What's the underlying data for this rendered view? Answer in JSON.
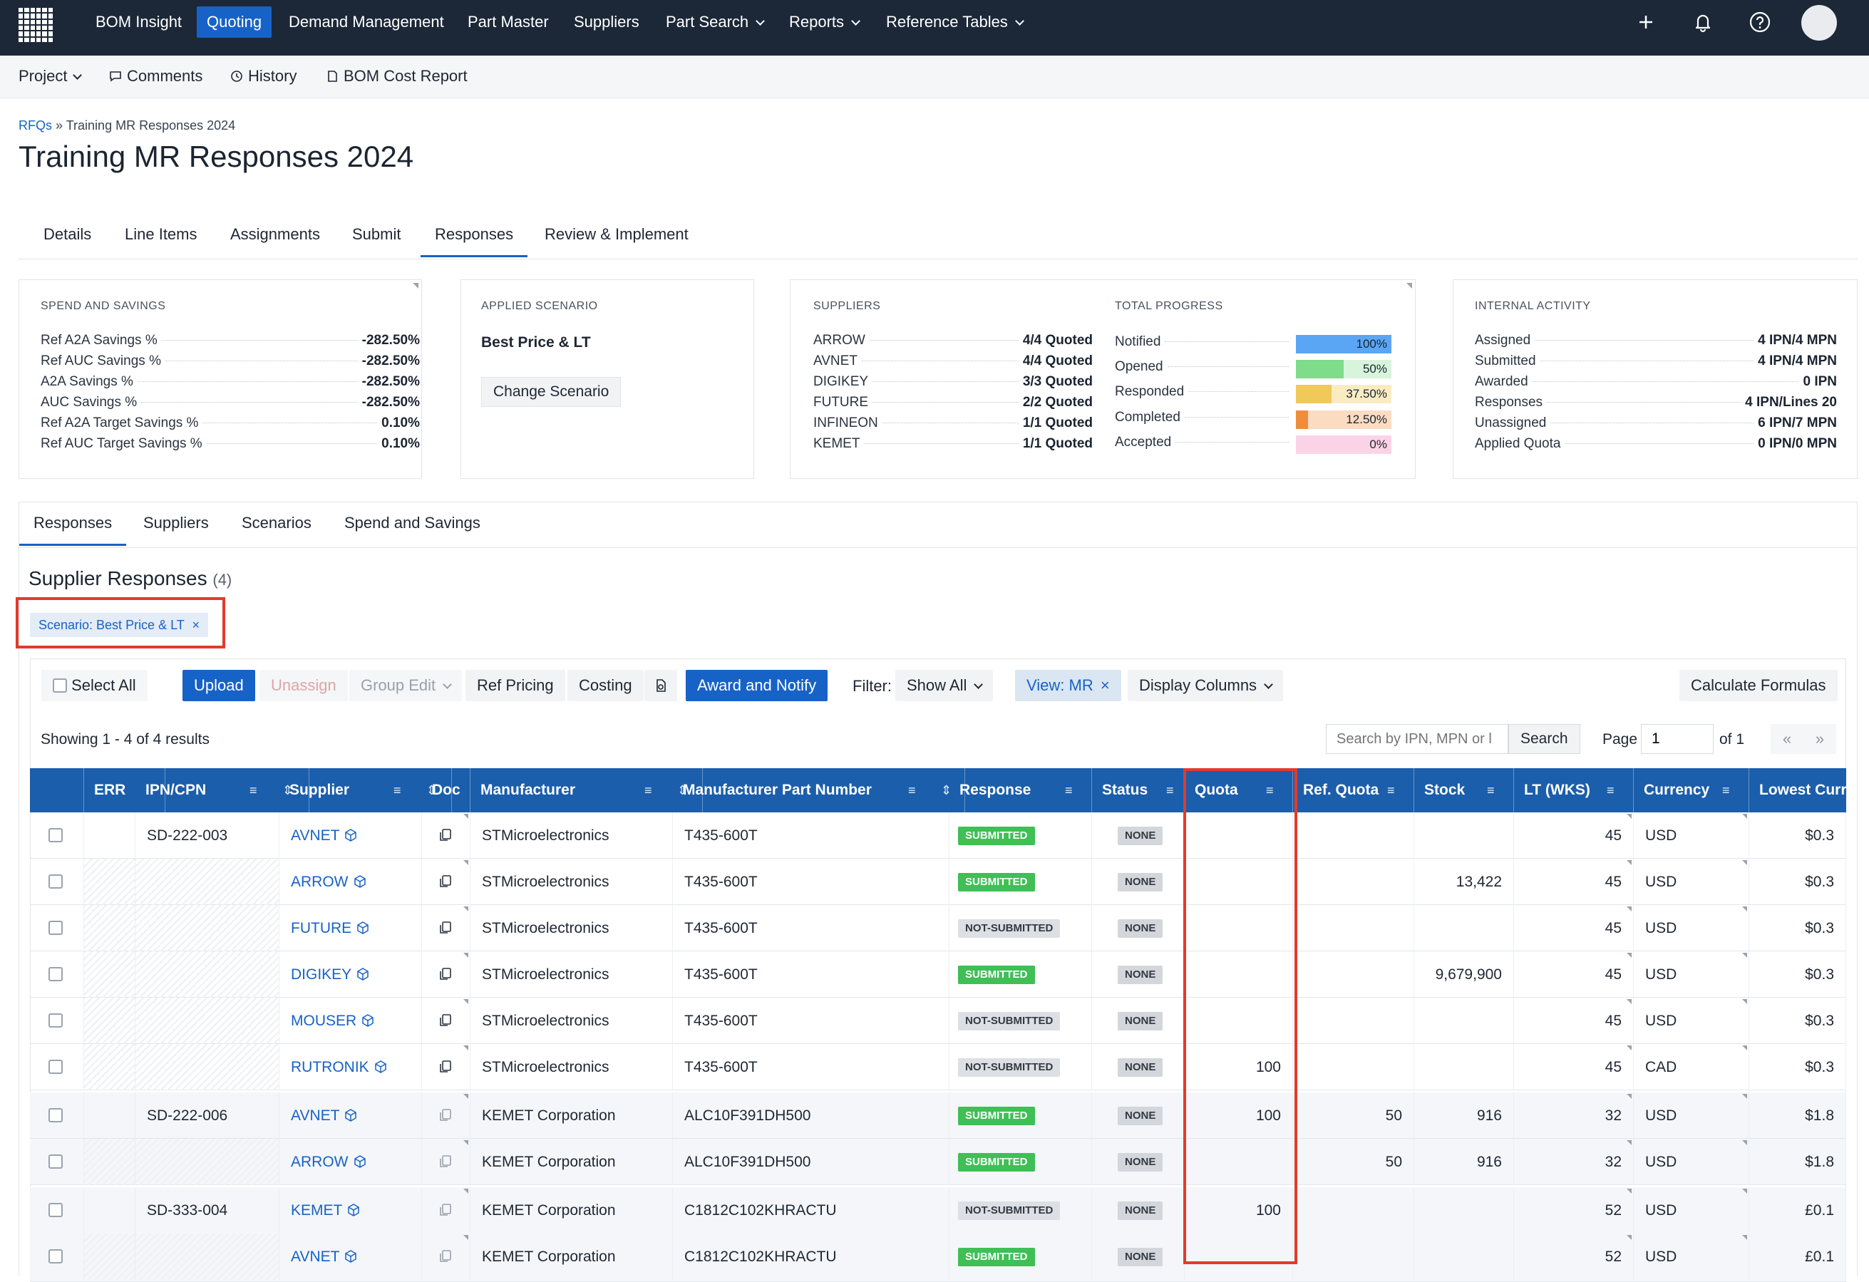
{
  "topnav": {
    "items": [
      "BOM Insight",
      "Quoting",
      "Demand Management",
      "Part Master",
      "Suppliers",
      "Part Search",
      "Reports",
      "Reference Tables"
    ],
    "active": "Quoting"
  },
  "subnav": {
    "project": "Project",
    "comments": "Comments",
    "history": "History",
    "bom_cost_report": "BOM Cost Report"
  },
  "breadcrumb": {
    "root": "RFQs",
    "sep": "»",
    "current": "Training MR Responses 2024"
  },
  "page_title": "Training MR Responses 2024",
  "main_tabs": [
    "Details",
    "Line Items",
    "Assignments",
    "Submit",
    "Responses",
    "Review & Implement"
  ],
  "spend": {
    "heading": "SPEND AND SAVINGS",
    "rows": [
      {
        "k": "Ref A2A Savings %",
        "v": "-282.50%"
      },
      {
        "k": "Ref AUC Savings %",
        "v": "-282.50%"
      },
      {
        "k": "A2A Savings %",
        "v": "-282.50%"
      },
      {
        "k": "AUC Savings %",
        "v": "-282.50%"
      },
      {
        "k": "Ref A2A Target Savings %",
        "v": "0.10%"
      },
      {
        "k": "Ref AUC Target Savings %",
        "v": "0.10%"
      }
    ]
  },
  "scenario": {
    "heading": "APPLIED SCENARIO",
    "name": "Best Price & LT",
    "button": "Change Scenario"
  },
  "suppliers_card": {
    "heading": "SUPPLIERS",
    "rows": [
      {
        "k": "ARROW",
        "v": "4/4 Quoted"
      },
      {
        "k": "AVNET",
        "v": "4/4 Quoted"
      },
      {
        "k": "DIGIKEY",
        "v": "3/3 Quoted"
      },
      {
        "k": "FUTURE",
        "v": "2/2 Quoted"
      },
      {
        "k": "INFINEON",
        "v": "1/1 Quoted"
      },
      {
        "k": "KEMET",
        "v": "1/1 Quoted"
      }
    ]
  },
  "progress": {
    "heading": "TOTAL PROGRESS",
    "rows": [
      {
        "k": "Notified",
        "v": "100%",
        "fraction": 1.0,
        "color": "#5aa6f5",
        "bg": "#cfe4fb"
      },
      {
        "k": "Opened",
        "v": "50%",
        "fraction": 0.5,
        "color": "#7fdc8a",
        "bg": "#d8f4dc"
      },
      {
        "k": "Responded",
        "v": "37.50%",
        "fraction": 0.375,
        "color": "#f0c95a",
        "bg": "#faecc2"
      },
      {
        "k": "Completed",
        "v": "12.50%",
        "fraction": 0.125,
        "color": "#f08c3a",
        "bg": "#fbdcc3"
      },
      {
        "k": "Accepted",
        "v": "0%",
        "fraction": 0.0,
        "color": "#f59fc6",
        "bg": "#fbd3e6"
      }
    ]
  },
  "internal": {
    "heading": "INTERNAL ACTIVITY",
    "rows": [
      {
        "k": "Assigned",
        "v": "4 IPN/4 MPN"
      },
      {
        "k": "Submitted",
        "v": "4 IPN/4 MPN"
      },
      {
        "k": "Awarded",
        "v": "0 IPN"
      },
      {
        "k": "Responses",
        "v": "4 IPN/Lines 20"
      },
      {
        "k": "Unassigned",
        "v": "6 IPN/7 MPN"
      },
      {
        "k": "Applied Quota",
        "v": "0 IPN/0 MPN"
      }
    ]
  },
  "sub_tabs": [
    "Responses",
    "Suppliers",
    "Scenarios",
    "Spend and Savings"
  ],
  "section": {
    "title": "Supplier Responses",
    "count": "(4)",
    "chip": "Scenario: Best Price & LT",
    "chip_close": "×"
  },
  "toolbar": {
    "select_all": "Select All",
    "upload": "Upload",
    "unassign": "Unassign",
    "group_edit": "Group Edit",
    "ref_pricing": "Ref Pricing",
    "costing": "Costing",
    "award": "Award and Notify",
    "filter_label": "Filter:",
    "filter_value": "Show All",
    "view": "View: MR",
    "view_close": "×",
    "display_columns": "Display Columns",
    "calc": "Calculate Formulas"
  },
  "results": {
    "showing": "Showing 1 - 4 of 4 results",
    "search_placeholder": "Search by IPN, MPN or l",
    "search_btn": "Search",
    "page_label": "Page",
    "page_value": "1",
    "of": "of 1",
    "first": "«",
    "last": "»"
  },
  "columns": [
    "ERR",
    "IPN/CPN",
    "Supplier",
    "Doc",
    "Manufacturer",
    "Manufacturer Part Number",
    "Response",
    "Status",
    "Quota",
    "Ref. Quota",
    "Stock",
    "LT (WKS)",
    "Currency",
    "Lowest Curr"
  ],
  "rows": [
    {
      "ipn": "SD-222-003",
      "supplier": "AVNET",
      "mfr": "STMicroelectronics",
      "mpn": "T435-600T",
      "response": "SUBMITTED",
      "status": "NONE",
      "quota": "",
      "ref_quota": "",
      "stock": "",
      "lt": "45",
      "currency": "USD",
      "lowest": "$0.3"
    },
    {
      "ipn": "",
      "supplier": "ARROW",
      "mfr": "STMicroelectronics",
      "mpn": "T435-600T",
      "response": "SUBMITTED",
      "status": "NONE",
      "quota": "",
      "ref_quota": "",
      "stock": "13,422",
      "lt": "45",
      "currency": "USD",
      "lowest": "$0.3"
    },
    {
      "ipn": "",
      "supplier": "FUTURE",
      "mfr": "STMicroelectronics",
      "mpn": "T435-600T",
      "response": "NOT-SUBMITTED",
      "status": "NONE",
      "quota": "",
      "ref_quota": "",
      "stock": "",
      "lt": "45",
      "currency": "USD",
      "lowest": "$0.3"
    },
    {
      "ipn": "",
      "supplier": "DIGIKEY",
      "mfr": "STMicroelectronics",
      "mpn": "T435-600T",
      "response": "SUBMITTED",
      "status": "NONE",
      "quota": "",
      "ref_quota": "",
      "stock": "9,679,900",
      "lt": "45",
      "currency": "USD",
      "lowest": "$0.3"
    },
    {
      "ipn": "",
      "supplier": "MOUSER",
      "mfr": "STMicroelectronics",
      "mpn": "T435-600T",
      "response": "NOT-SUBMITTED",
      "status": "NONE",
      "quota": "",
      "ref_quota": "",
      "stock": "",
      "lt": "45",
      "currency": "USD",
      "lowest": "$0.3"
    },
    {
      "ipn": "",
      "supplier": "RUTRONIK",
      "mfr": "STMicroelectronics",
      "mpn": "T435-600T",
      "response": "NOT-SUBMITTED",
      "status": "NONE",
      "quota": "100",
      "ref_quota": "",
      "stock": "",
      "lt": "45",
      "currency": "CAD",
      "lowest": "$0.3"
    },
    {
      "ipn": "SD-222-006",
      "supplier": "AVNET",
      "mfr": "KEMET Corporation",
      "mpn": "ALC10F391DH500",
      "response": "SUBMITTED",
      "status": "NONE",
      "quota": "100",
      "ref_quota": "50",
      "stock": "916",
      "lt": "32",
      "currency": "USD",
      "lowest": "$1.8"
    },
    {
      "ipn": "",
      "supplier": "ARROW",
      "mfr": "KEMET Corporation",
      "mpn": "ALC10F391DH500",
      "response": "SUBMITTED",
      "status": "NONE",
      "quota": "",
      "ref_quota": "50",
      "stock": "916",
      "lt": "32",
      "currency": "USD",
      "lowest": "$1.8"
    },
    {
      "ipn": "SD-333-004",
      "supplier": "KEMET",
      "mfr": "KEMET Corporation",
      "mpn": "C1812C102KHRACTU",
      "response": "NOT-SUBMITTED",
      "status": "NONE",
      "quota": "100",
      "ref_quota": "",
      "stock": "",
      "lt": "52",
      "currency": "USD",
      "lowest": "£0.1"
    },
    {
      "ipn": "",
      "supplier": "AVNET",
      "mfr": "KEMET Corporation",
      "mpn": "C1812C102KHRACTU",
      "response": "SUBMITTED",
      "status": "NONE",
      "quota": "",
      "ref_quota": "",
      "stock": "",
      "lt": "52",
      "currency": "USD",
      "lowest": "£0.1"
    }
  ],
  "colors": {
    "nav_bg": "#1c2838",
    "accent": "#1762c7",
    "header_bg": "#1b5eab",
    "highlight": "#e33a2b",
    "submitted": "#3fbf55"
  }
}
